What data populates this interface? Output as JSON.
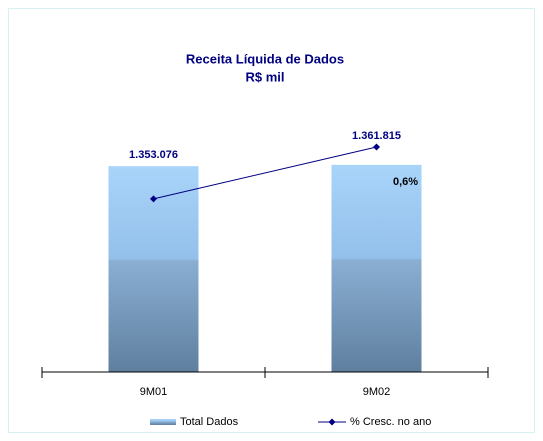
{
  "chart_data": {
    "type": "bar_line",
    "title": "Receita Líquida de Dados",
    "subtitle": "R$ mil",
    "categories": [
      "9M01",
      "9M02"
    ],
    "series": [
      {
        "name": "Total Dados",
        "type": "bar",
        "color": "#8fbbe6",
        "values": [
          1353076,
          1361815
        ],
        "value_labels": [
          "1.353.076",
          "1.361.815"
        ]
      },
      {
        "name": "% Cresc. no ano",
        "type": "line",
        "axis": "y2",
        "color": "#000080",
        "values": [
          0,
          0.6
        ],
        "value_labels": [
          null,
          "0,6%"
        ]
      }
    ],
    "ylim": [
      0,
      1650000
    ],
    "y2lim": [
      -2,
      0.9
    ],
    "legend": "bottom"
  }
}
